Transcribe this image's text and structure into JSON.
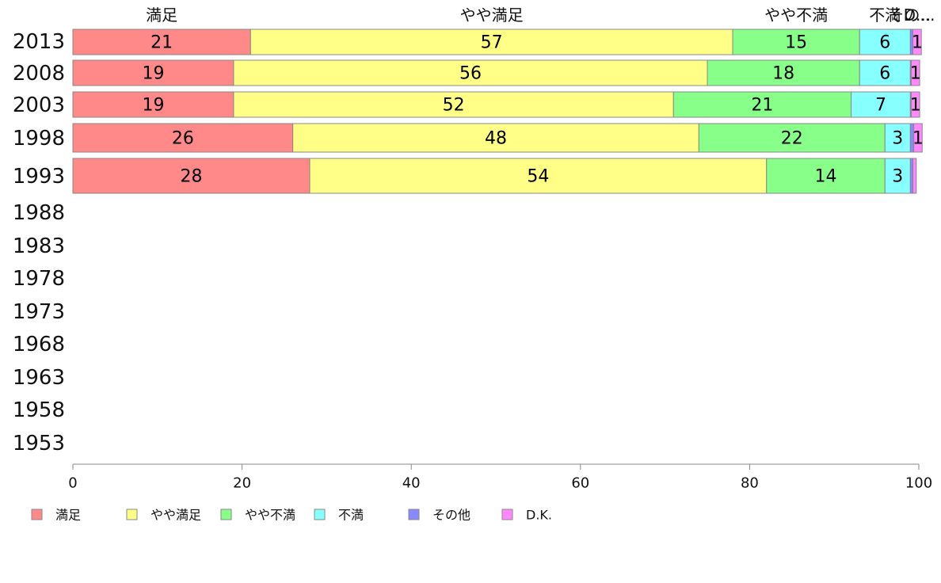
{
  "chart_data": {
    "type": "bar",
    "orientation": "horizontal",
    "stacked": true,
    "categories": [
      "2013",
      "2008",
      "2003",
      "1998",
      "1993",
      "1988",
      "1983",
      "1978",
      "1973",
      "1968",
      "1963",
      "1958",
      "1953"
    ],
    "series": [
      {
        "name": "満足",
        "color": "#ff8888",
        "values": [
          21,
          19,
          19,
          26,
          28,
          null,
          null,
          null,
          null,
          null,
          null,
          null,
          null
        ]
      },
      {
        "name": "やや満足",
        "color": "#ffff88",
        "values": [
          57,
          56,
          52,
          48,
          54,
          null,
          null,
          null,
          null,
          null,
          null,
          null,
          null
        ]
      },
      {
        "name": "やや不満",
        "color": "#88ff88",
        "values": [
          15,
          18,
          21,
          22,
          14,
          null,
          null,
          null,
          null,
          null,
          null,
          null,
          null
        ]
      },
      {
        "name": "不満",
        "color": "#88ffff",
        "values": [
          6,
          6,
          7,
          3,
          3,
          null,
          null,
          null,
          null,
          null,
          null,
          null,
          null
        ]
      },
      {
        "name": "その他",
        "color": "#8888ff",
        "values": [
          0.3,
          0.1,
          0.1,
          0.4,
          0.3,
          null,
          null,
          null,
          null,
          null,
          null,
          null,
          null
        ]
      },
      {
        "name": "D.K.",
        "color": "#ff88ff",
        "values": [
          1,
          1,
          1,
          1,
          0.4,
          null,
          null,
          null,
          null,
          null,
          null,
          null,
          null
        ]
      }
    ],
    "top_labels": [
      "満足",
      "やや満足",
      "やや不満",
      "不満",
      "その...",
      "D..."
    ],
    "xlim": [
      0,
      100
    ],
    "x_ticks": [
      "0",
      "20",
      "40",
      "60",
      "80",
      "100"
    ],
    "grid": false,
    "legend_position": "bottom-left"
  }
}
